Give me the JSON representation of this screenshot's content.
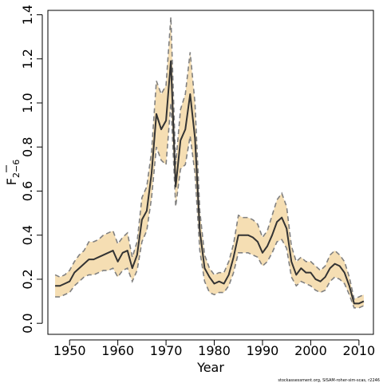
{
  "chart_data": {
    "type": "line",
    "xlabel": "Year",
    "ylabel_main": "F",
    "ylabel_sub": "2−6",
    "xlim": [
      1945.5,
      2013
    ],
    "ylim": [
      -0.05,
      1.42
    ],
    "x_ticks": [
      1950,
      1960,
      1970,
      1980,
      1990,
      2000,
      2010
    ],
    "y_ticks": [
      "0.0",
      "0.2",
      "0.4",
      "0.6",
      "0.8",
      "1.0",
      "1.2",
      "1.4"
    ],
    "grid": false,
    "legend": "none",
    "colors": {
      "band": "#f5deb3",
      "band_edge": "#808080",
      "line": "#333333",
      "frame": "#000000"
    },
    "x": [
      1947,
      1948,
      1949,
      1950,
      1951,
      1952,
      1953,
      1954,
      1955,
      1956,
      1957,
      1958,
      1959,
      1960,
      1961,
      1962,
      1963,
      1964,
      1965,
      1966,
      1967,
      1968,
      1969,
      1970,
      1971,
      1972,
      1973,
      1974,
      1975,
      1976,
      1977,
      1978,
      1979,
      1980,
      1981,
      1982,
      1983,
      1984,
      1985,
      1986,
      1987,
      1988,
      1989,
      1990,
      1991,
      1992,
      1993,
      1994,
      1995,
      1996,
      1997,
      1998,
      1999,
      2000,
      2001,
      2002,
      2003,
      2004,
      2005,
      2006,
      2007,
      2008,
      2009,
      2010,
      2011
    ],
    "series": [
      {
        "role": "estimate",
        "values": [
          0.17,
          0.17,
          0.18,
          0.19,
          0.23,
          0.25,
          0.27,
          0.29,
          0.29,
          0.3,
          0.31,
          0.32,
          0.33,
          0.28,
          0.32,
          0.33,
          0.25,
          0.31,
          0.47,
          0.51,
          0.68,
          0.95,
          0.88,
          0.92,
          1.19,
          0.62,
          0.83,
          0.88,
          1.04,
          0.84,
          0.42,
          0.25,
          0.21,
          0.18,
          0.19,
          0.18,
          0.22,
          0.3,
          0.4,
          0.4,
          0.4,
          0.39,
          0.37,
          0.32,
          0.35,
          0.4,
          0.46,
          0.48,
          0.43,
          0.28,
          0.22,
          0.25,
          0.23,
          0.23,
          0.2,
          0.19,
          0.21,
          0.25,
          0.27,
          0.26,
          0.23,
          0.17,
          0.09,
          0.09,
          0.1
        ]
      },
      {
        "role": "upper",
        "values": [
          0.22,
          0.21,
          0.22,
          0.24,
          0.28,
          0.31,
          0.33,
          0.37,
          0.37,
          0.38,
          0.4,
          0.41,
          0.42,
          0.36,
          0.39,
          0.41,
          0.3,
          0.37,
          0.57,
          0.62,
          0.78,
          1.1,
          1.04,
          1.08,
          1.39,
          0.72,
          0.97,
          1.04,
          1.23,
          1.0,
          0.51,
          0.31,
          0.25,
          0.22,
          0.23,
          0.23,
          0.28,
          0.36,
          0.49,
          0.48,
          0.48,
          0.47,
          0.45,
          0.39,
          0.42,
          0.49,
          0.56,
          0.59,
          0.53,
          0.35,
          0.28,
          0.3,
          0.28,
          0.28,
          0.26,
          0.24,
          0.26,
          0.31,
          0.33,
          0.31,
          0.28,
          0.21,
          0.11,
          0.12,
          0.13
        ]
      },
      {
        "role": "lower",
        "values": [
          0.12,
          0.12,
          0.13,
          0.14,
          0.17,
          0.19,
          0.21,
          0.22,
          0.22,
          0.23,
          0.24,
          0.24,
          0.25,
          0.21,
          0.24,
          0.25,
          0.19,
          0.24,
          0.37,
          0.42,
          0.57,
          0.8,
          0.74,
          0.72,
          1.0,
          0.53,
          0.7,
          0.72,
          0.85,
          0.68,
          0.33,
          0.19,
          0.14,
          0.13,
          0.14,
          0.14,
          0.17,
          0.23,
          0.32,
          0.32,
          0.32,
          0.31,
          0.3,
          0.26,
          0.28,
          0.32,
          0.37,
          0.38,
          0.34,
          0.21,
          0.17,
          0.19,
          0.18,
          0.17,
          0.15,
          0.14,
          0.15,
          0.19,
          0.21,
          0.2,
          0.18,
          0.13,
          0.07,
          0.07,
          0.08
        ]
      }
    ],
    "credit": "stockassessment.org, SISAM-roher-sim-scas, r2246"
  }
}
